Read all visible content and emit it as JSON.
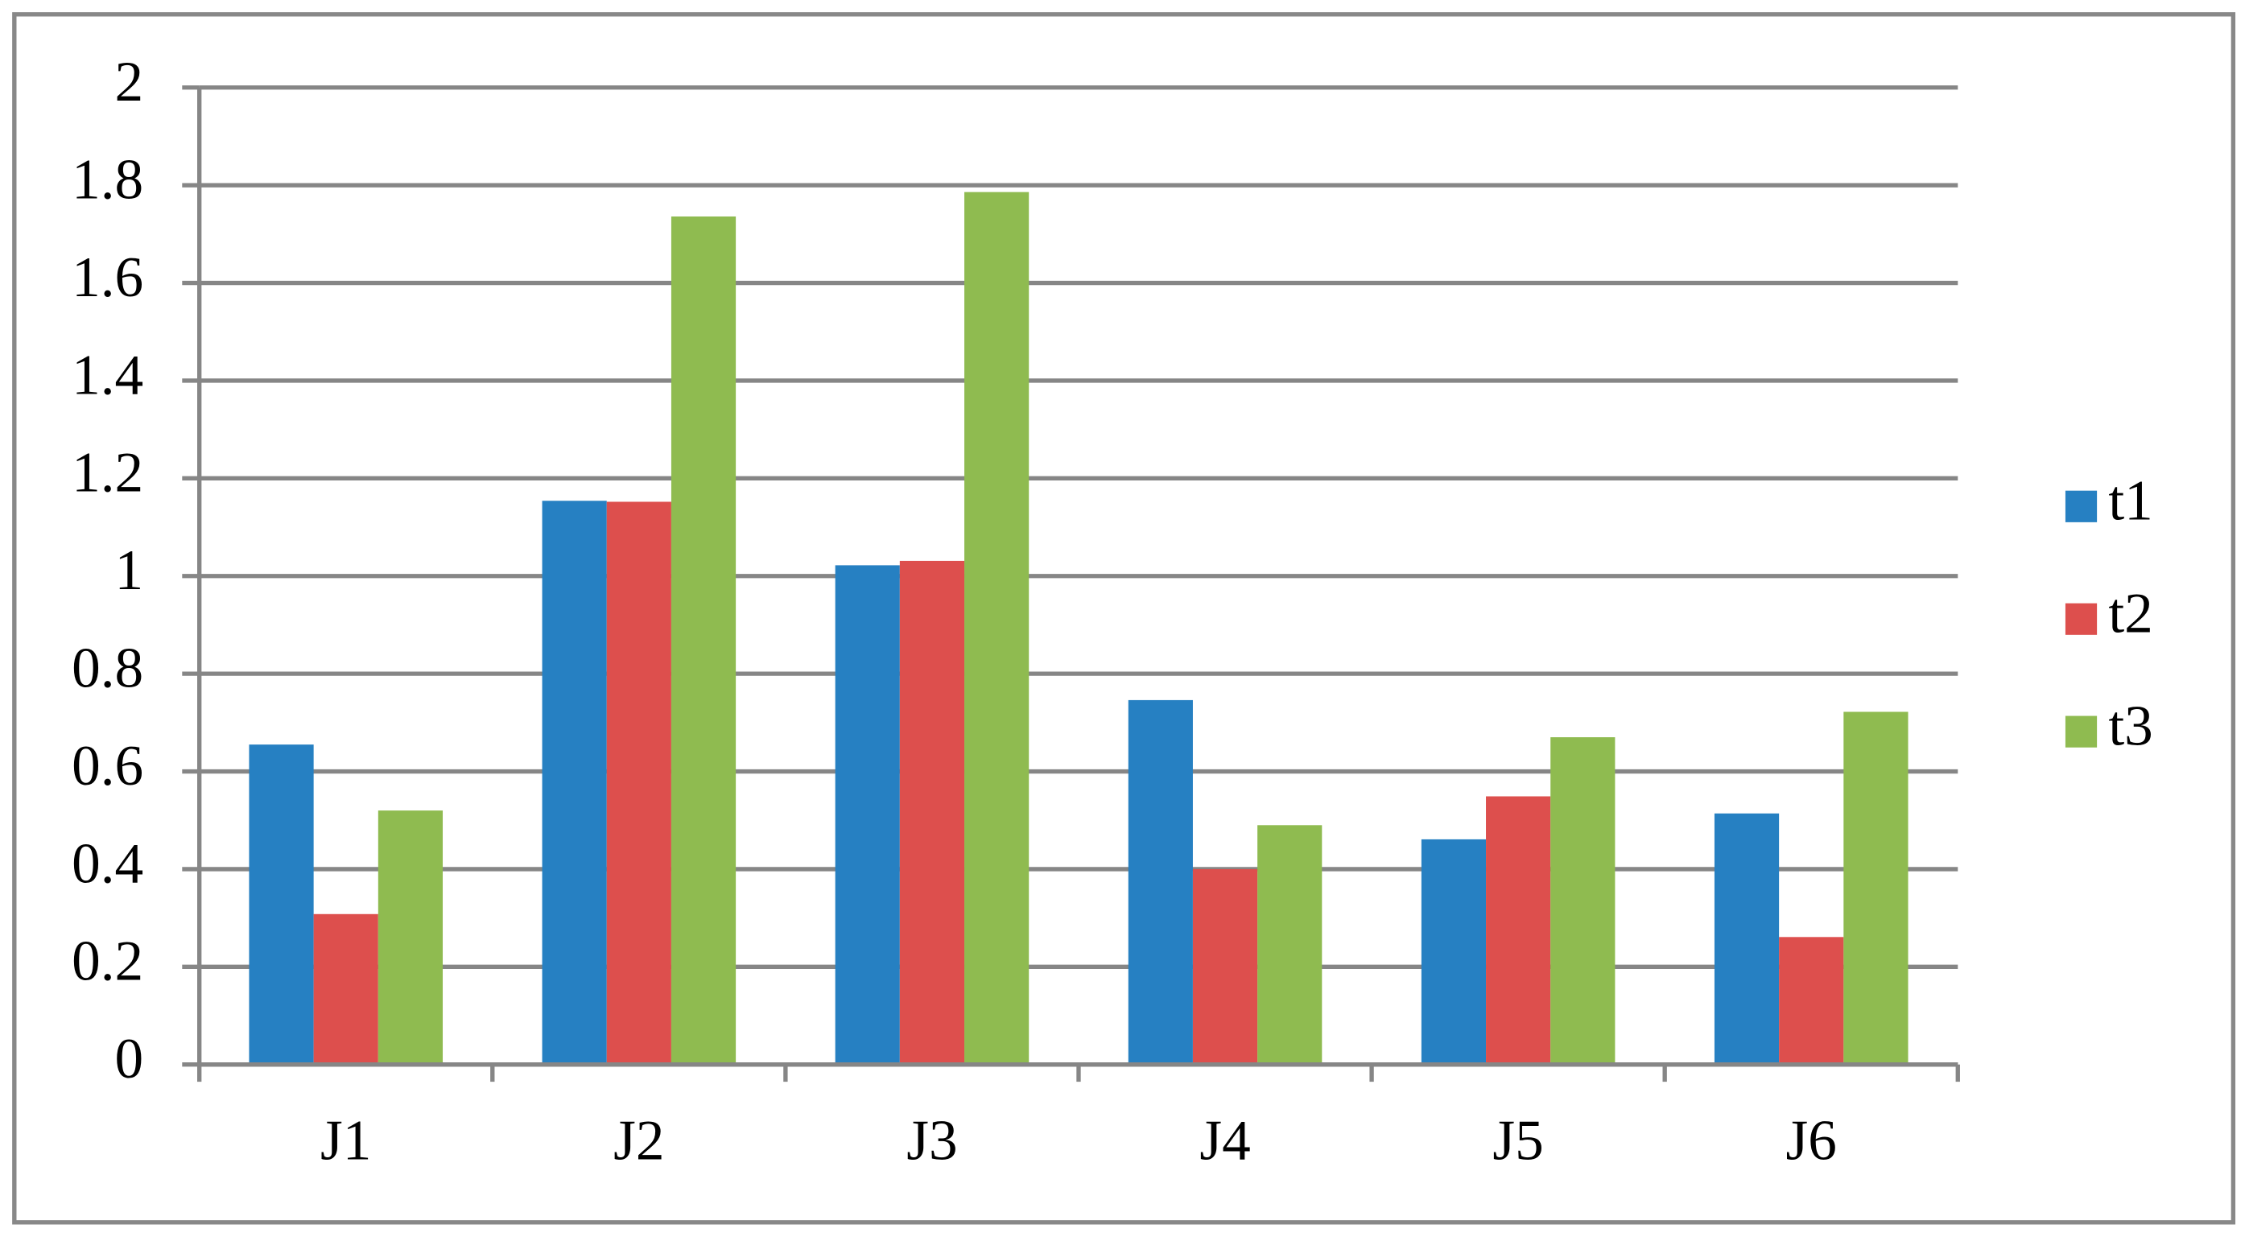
{
  "chart_data": {
    "type": "bar",
    "categories": [
      "J1",
      "J2",
      "J3",
      "J4",
      "J5",
      "J6"
    ],
    "series": [
      {
        "name": "t1",
        "color": "#2680c2",
        "values": [
          0.655,
          1.154,
          1.022,
          0.746,
          0.461,
          0.514
        ]
      },
      {
        "name": "t2",
        "color": "#dd4f4d",
        "values": [
          0.308,
          1.152,
          1.031,
          0.4,
          0.549,
          0.261
        ]
      },
      {
        "name": "t3",
        "color": "#8fbb50",
        "values": [
          0.52,
          1.736,
          1.786,
          0.49,
          0.67,
          0.722
        ]
      }
    ],
    "ylim": [
      0,
      2
    ],
    "yticks": [
      0,
      0.2,
      0.4,
      0.6,
      0.8,
      1,
      1.2,
      1.4,
      1.6,
      1.8,
      2
    ],
    "grid": true,
    "legend": "right"
  }
}
